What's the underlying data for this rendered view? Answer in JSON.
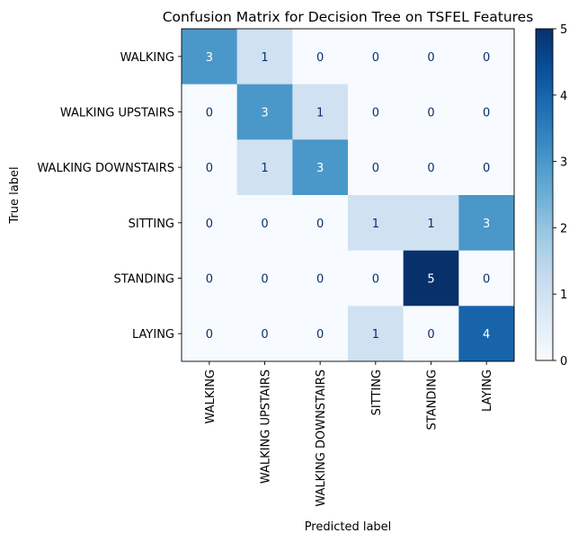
{
  "chart_data": {
    "type": "heatmap",
    "title": "Confusion Matrix for Decision Tree on TSFEL Features",
    "xlabel": "Predicted label",
    "ylabel": "True label",
    "x_categories": [
      "WALKING",
      "WALKING UPSTAIRS",
      "WALKING DOWNSTAIRS",
      "SITTING",
      "STANDING",
      "LAYING"
    ],
    "y_categories": [
      "WALKING",
      "WALKING UPSTAIRS",
      "WALKING DOWNSTAIRS",
      "SITTING",
      "STANDING",
      "LAYING"
    ],
    "values": [
      [
        3,
        1,
        0,
        0,
        0,
        0
      ],
      [
        0,
        3,
        1,
        0,
        0,
        0
      ],
      [
        0,
        1,
        3,
        0,
        0,
        0
      ],
      [
        0,
        0,
        0,
        1,
        1,
        3
      ],
      [
        0,
        0,
        0,
        0,
        5,
        0
      ],
      [
        0,
        0,
        0,
        1,
        0,
        4
      ]
    ],
    "colormap": "Blues",
    "vmin": 0,
    "vmax": 5,
    "colorbar_ticks": [
      0,
      1,
      2,
      3,
      4,
      5
    ]
  }
}
